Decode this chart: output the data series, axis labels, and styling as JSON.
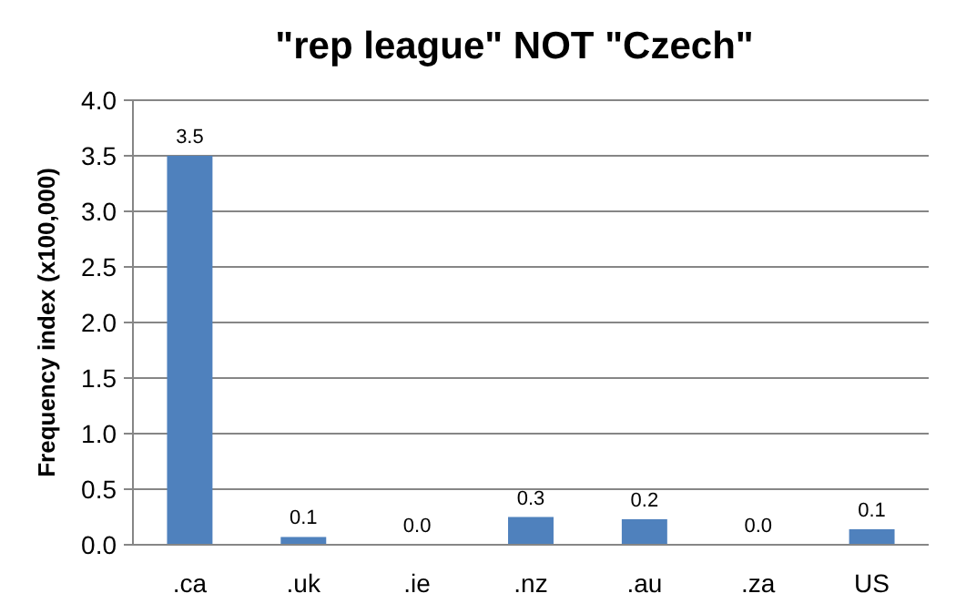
{
  "chart_data": {
    "type": "bar",
    "title": "\"rep league\" NOT \"Czech\"",
    "ylabel": "Frequency index (x100,000)",
    "categories": [
      ".ca",
      ".uk",
      ".ie",
      ".nz",
      ".au",
      ".za",
      "US"
    ],
    "values": [
      3.5,
      0.07,
      0,
      0.25,
      0.23,
      0,
      0.14
    ],
    "value_labels": [
      "3.5",
      "0.1",
      "0.0",
      "0.3",
      "0.2",
      "0.0",
      "0.1"
    ],
    "color": "#4f81bd",
    "ylim": [
      0,
      4
    ],
    "yticks": [
      {
        "value": 0,
        "label": "0.0"
      },
      {
        "value": 0.5,
        "label": "0.5"
      },
      {
        "value": 1,
        "label": "1.0"
      },
      {
        "value": 1.5,
        "label": "1.5"
      },
      {
        "value": 2,
        "label": "2.0"
      },
      {
        "value": 2.5,
        "label": "2.5"
      },
      {
        "value": 3,
        "label": "3.0"
      },
      {
        "value": 3.5,
        "label": "3.5"
      },
      {
        "value": 4,
        "label": "4.0"
      }
    ],
    "grid": "y"
  }
}
